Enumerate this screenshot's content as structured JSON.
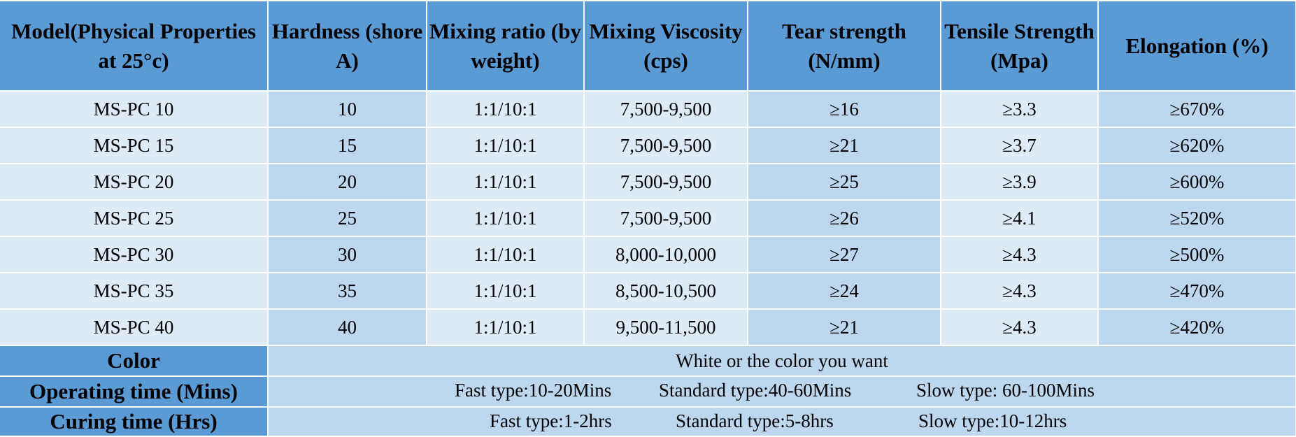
{
  "headers": [
    "Model(Physical Properties at 25°c)",
    "Hardness (shore A)",
    "Mixing ratio (by weight)",
    "Mixing Viscosity (cps)",
    "Tear strength (N/mm)",
    "Tensile Strength (Mpa)",
    "Elongation (%)"
  ],
  "rows": [
    [
      "MS-PC 10",
      "10",
      "1:1/10:1",
      "7,500-9,500",
      "≥16",
      "≥3.3",
      "≥670%"
    ],
    [
      "MS-PC 15",
      "15",
      "1:1/10:1",
      "7,500-9,500",
      "≥21",
      "≥3.7",
      "≥620%"
    ],
    [
      "MS-PC 20",
      "20",
      "1:1/10:1",
      "7,500-9,500",
      "≥25",
      "≥3.9",
      "≥600%"
    ],
    [
      "MS-PC 25",
      "25",
      "1:1/10:1",
      "7,500-9,500",
      "≥26",
      "≥4.1",
      "≥520%"
    ],
    [
      "MS-PC 30",
      "30",
      "1:1/10:1",
      "8,000-10,000",
      "≥27",
      "≥4.3",
      "≥500%"
    ],
    [
      "MS-PC 35",
      "35",
      "1:1/10:1",
      "8,500-10,500",
      "≥24",
      "≥4.3",
      "≥470%"
    ],
    [
      "MS-PC 40",
      "40",
      "1:1/10:1",
      "9,500-11,500",
      "≥21",
      "≥4.3",
      "≥420%"
    ]
  ],
  "color": {
    "label": "Color",
    "value": "White or the color you want"
  },
  "operating_time": {
    "label": "Operating time (Mins)",
    "fast": "Fast type:10-20Mins",
    "standard": "Standard type:40-60Mins",
    "slow": "Slow type: 60-100Mins"
  },
  "curing_time": {
    "label": "Curing time (Hrs)",
    "fast": "Fast type:1-2hrs",
    "standard": "Standard type:5-8hrs",
    "slow": "Slow type:10-12hrs"
  },
  "colors": {
    "header_bg": "#5b9bd5",
    "light_cell": "#deebf7",
    "mid_cell": "#bdd7ee",
    "border": "#ffffff"
  }
}
